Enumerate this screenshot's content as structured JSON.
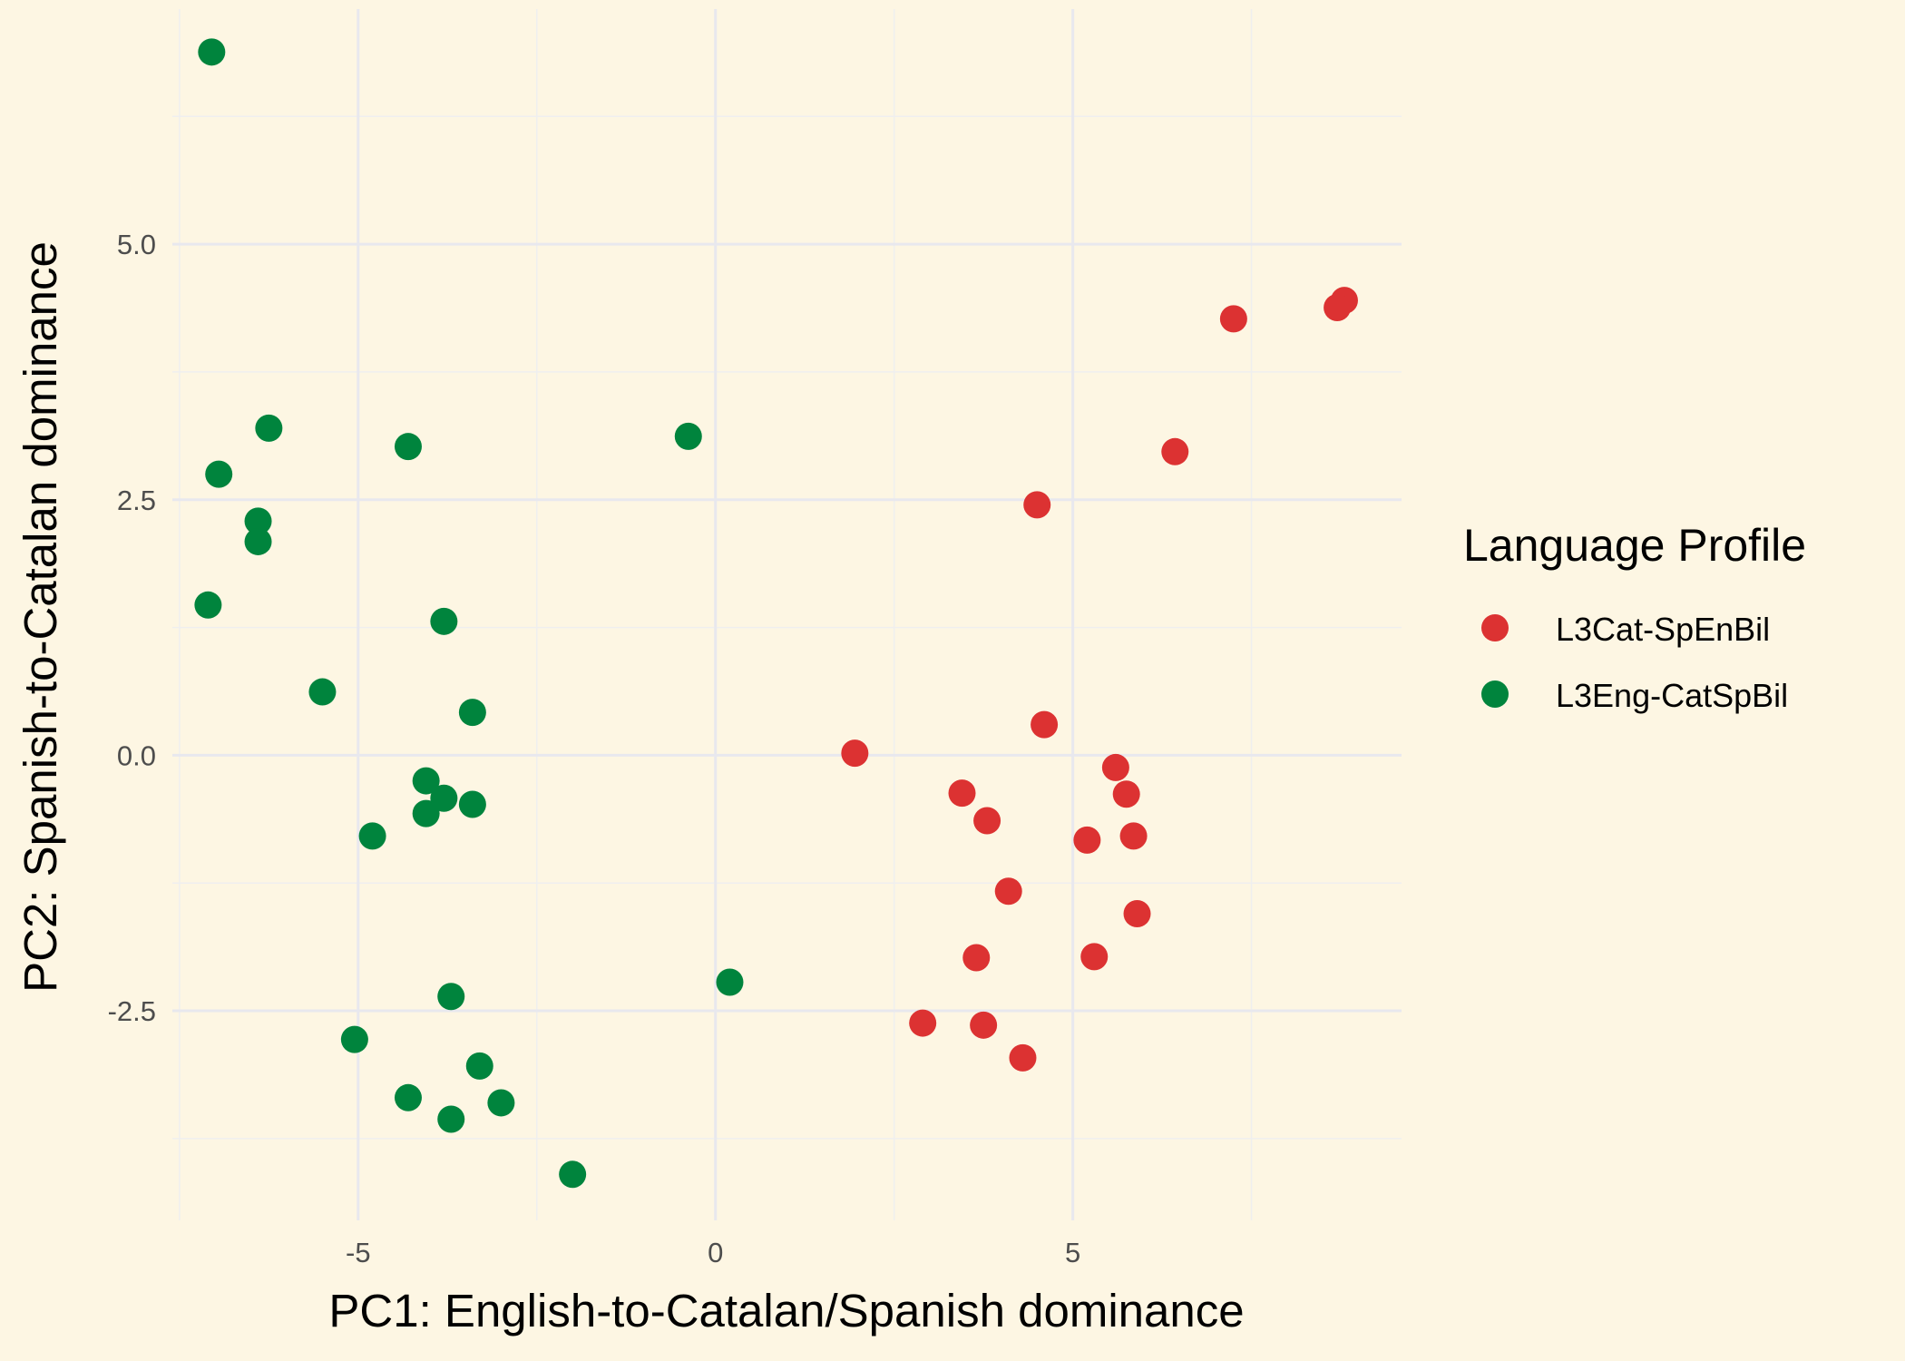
{
  "chart_data": {
    "type": "scatter",
    "title": "",
    "xlabel": "PC1: English-to-Catalan/Spanish dominance",
    "ylabel": "PC2: Spanish-to-Catalan dominance",
    "xlim": [
      -7.6,
      9.6
    ],
    "ylim": [
      -4.55,
      7.3
    ],
    "x_ticks": [
      -5,
      0,
      5
    ],
    "x_tick_labels": [
      "-5",
      "0",
      "5"
    ],
    "y_ticks": [
      -2.5,
      0.0,
      2.5,
      5.0
    ],
    "y_tick_labels": [
      "-2.5",
      "0.0",
      "2.5",
      "5.0"
    ],
    "grid": true,
    "legend": {
      "title": "Language Profile",
      "placement": "right"
    },
    "series": [
      {
        "name": "L3Cat-SpEnBil",
        "color": "#dc3232",
        "points": [
          [
            8.8,
            4.45
          ],
          [
            8.7,
            4.38
          ],
          [
            7.25,
            4.27
          ],
          [
            6.43,
            2.97
          ],
          [
            4.5,
            2.45
          ],
          [
            4.6,
            0.3
          ],
          [
            1.95,
            0.02
          ],
          [
            5.6,
            -0.12
          ],
          [
            5.75,
            -0.38
          ],
          [
            3.45,
            -0.37
          ],
          [
            3.8,
            -0.64
          ],
          [
            5.2,
            -0.83
          ],
          [
            5.85,
            -0.79
          ],
          [
            4.1,
            -1.33
          ],
          [
            5.9,
            -1.55
          ],
          [
            3.65,
            -1.98
          ],
          [
            5.3,
            -1.97
          ],
          [
            2.9,
            -2.62
          ],
          [
            3.75,
            -2.64
          ],
          [
            4.3,
            -2.96
          ]
        ]
      },
      {
        "name": "L3Eng-CatSpBil",
        "color": "#00843d",
        "points": [
          [
            -7.05,
            6.88
          ],
          [
            -6.25,
            3.2
          ],
          [
            -4.3,
            3.02
          ],
          [
            -0.38,
            3.12
          ],
          [
            -6.95,
            2.75
          ],
          [
            -6.4,
            2.29
          ],
          [
            -6.4,
            2.09
          ],
          [
            -7.1,
            1.47
          ],
          [
            -3.8,
            1.31
          ],
          [
            -5.5,
            0.62
          ],
          [
            -3.4,
            0.42
          ],
          [
            -4.05,
            -0.25
          ],
          [
            -3.8,
            -0.42
          ],
          [
            -3.4,
            -0.48
          ],
          [
            -4.05,
            -0.57
          ],
          [
            -4.8,
            -0.79
          ],
          [
            0.2,
            -2.22
          ],
          [
            -3.7,
            -2.36
          ],
          [
            -5.05,
            -2.78
          ],
          [
            -3.3,
            -3.04
          ],
          [
            -4.3,
            -3.35
          ],
          [
            -3.0,
            -3.4
          ],
          [
            -3.7,
            -3.56
          ],
          [
            -2.0,
            -4.1
          ]
        ]
      }
    ]
  }
}
